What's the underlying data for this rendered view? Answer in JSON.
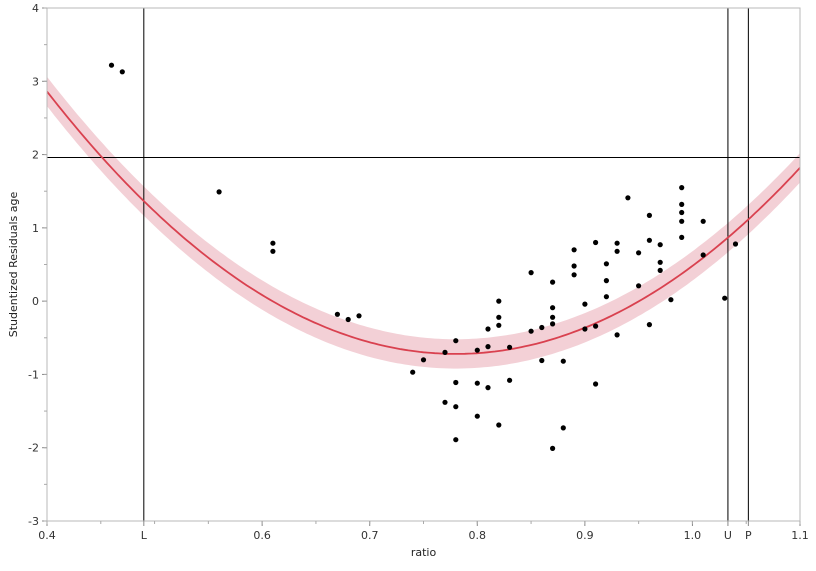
{
  "chart_data": {
    "type": "scatter",
    "xlabel": "ratio",
    "ylabel": "Studentized Residuals age",
    "xlim": [
      0.4,
      1.1
    ],
    "ylim": [
      -3,
      4
    ],
    "x_ticks": [
      {
        "value": 0.4,
        "label": "0.4"
      },
      {
        "value": 0.6,
        "label": "0.6"
      },
      {
        "value": 0.7,
        "label": "0.7"
      },
      {
        "value": 0.8,
        "label": "0.8"
      },
      {
        "value": 0.9,
        "label": "0.9"
      },
      {
        "value": 1.0,
        "label": "1.0"
      },
      {
        "value": 1.1,
        "label": "1.1"
      }
    ],
    "y_ticks": [
      {
        "value": -3,
        "label": "-3"
      },
      {
        "value": -2,
        "label": "-2"
      },
      {
        "value": -1,
        "label": "-1"
      },
      {
        "value": 0,
        "label": "0"
      },
      {
        "value": 1,
        "label": "1"
      },
      {
        "value": 2,
        "label": "2"
      },
      {
        "value": 3,
        "label": "3"
      },
      {
        "value": 4,
        "label": "4"
      }
    ],
    "reference_lines": {
      "vertical": [
        {
          "value": 0.49,
          "label": "L"
        },
        {
          "value": 1.033,
          "label": "U"
        },
        {
          "value": 1.052,
          "label": "P"
        }
      ],
      "horizontal": [
        {
          "value": 1.96
        }
      ]
    },
    "fit_curve": {
      "type": "quadratic",
      "vertex_x": 0.78,
      "vertex_y": -0.72,
      "coefficient": 24.8,
      "band_halfwidth": 0.2,
      "line_color": "#d9414f",
      "band_color": "#f3d0d6"
    },
    "points": [
      {
        "x": 0.46,
        "y": 3.22
      },
      {
        "x": 0.47,
        "y": 3.13
      },
      {
        "x": 0.56,
        "y": 1.49
      },
      {
        "x": 0.61,
        "y": 0.79
      },
      {
        "x": 0.61,
        "y": 0.68
      },
      {
        "x": 0.67,
        "y": -0.18
      },
      {
        "x": 0.68,
        "y": -0.25
      },
      {
        "x": 0.69,
        "y": -0.2
      },
      {
        "x": 0.74,
        "y": -0.97
      },
      {
        "x": 0.75,
        "y": -0.8
      },
      {
        "x": 0.77,
        "y": -0.7
      },
      {
        "x": 0.77,
        "y": -1.38
      },
      {
        "x": 0.78,
        "y": -0.54
      },
      {
        "x": 0.78,
        "y": -1.11
      },
      {
        "x": 0.78,
        "y": -1.44
      },
      {
        "x": 0.78,
        "y": -1.89
      },
      {
        "x": 0.8,
        "y": -0.67
      },
      {
        "x": 0.8,
        "y": -1.12
      },
      {
        "x": 0.8,
        "y": -1.57
      },
      {
        "x": 0.81,
        "y": -0.38
      },
      {
        "x": 0.81,
        "y": -0.62
      },
      {
        "x": 0.81,
        "y": -1.18
      },
      {
        "x": 0.82,
        "y": 0.0
      },
      {
        "x": 0.82,
        "y": -0.22
      },
      {
        "x": 0.82,
        "y": -0.33
      },
      {
        "x": 0.82,
        "y": -1.69
      },
      {
        "x": 0.83,
        "y": -0.63
      },
      {
        "x": 0.83,
        "y": -1.08
      },
      {
        "x": 0.85,
        "y": 0.39
      },
      {
        "x": 0.85,
        "y": -0.41
      },
      {
        "x": 0.86,
        "y": -0.36
      },
      {
        "x": 0.86,
        "y": -0.81
      },
      {
        "x": 0.87,
        "y": 0.26
      },
      {
        "x": 0.87,
        "y": -0.09
      },
      {
        "x": 0.87,
        "y": -0.22
      },
      {
        "x": 0.87,
        "y": -0.31
      },
      {
        "x": 0.87,
        "y": -2.01
      },
      {
        "x": 0.88,
        "y": -0.82
      },
      {
        "x": 0.88,
        "y": -1.73
      },
      {
        "x": 0.89,
        "y": 0.7
      },
      {
        "x": 0.89,
        "y": 0.48
      },
      {
        "x": 0.89,
        "y": 0.36
      },
      {
        "x": 0.9,
        "y": -0.04
      },
      {
        "x": 0.9,
        "y": -0.38
      },
      {
        "x": 0.91,
        "y": 0.8
      },
      {
        "x": 0.91,
        "y": -0.34
      },
      {
        "x": 0.91,
        "y": -1.13
      },
      {
        "x": 0.92,
        "y": 0.51
      },
      {
        "x": 0.92,
        "y": 0.28
      },
      {
        "x": 0.92,
        "y": 0.06
      },
      {
        "x": 0.93,
        "y": 0.79
      },
      {
        "x": 0.93,
        "y": 0.68
      },
      {
        "x": 0.93,
        "y": -0.46
      },
      {
        "x": 0.94,
        "y": 1.41
      },
      {
        "x": 0.95,
        "y": 0.66
      },
      {
        "x": 0.95,
        "y": 0.21
      },
      {
        "x": 0.96,
        "y": 1.17
      },
      {
        "x": 0.96,
        "y": 0.83
      },
      {
        "x": 0.96,
        "y": -0.32
      },
      {
        "x": 0.97,
        "y": 0.77
      },
      {
        "x": 0.97,
        "y": 0.53
      },
      {
        "x": 0.97,
        "y": 0.42
      },
      {
        "x": 0.98,
        "y": 0.02
      },
      {
        "x": 0.99,
        "y": 1.55
      },
      {
        "x": 0.99,
        "y": 1.32
      },
      {
        "x": 0.99,
        "y": 1.21
      },
      {
        "x": 0.99,
        "y": 1.09
      },
      {
        "x": 0.99,
        "y": 0.87
      },
      {
        "x": 1.01,
        "y": 1.09
      },
      {
        "x": 1.01,
        "y": 0.63
      },
      {
        "x": 1.03,
        "y": 0.04
      },
      {
        "x": 1.04,
        "y": 0.78
      }
    ],
    "grid": false,
    "legend": "none"
  }
}
